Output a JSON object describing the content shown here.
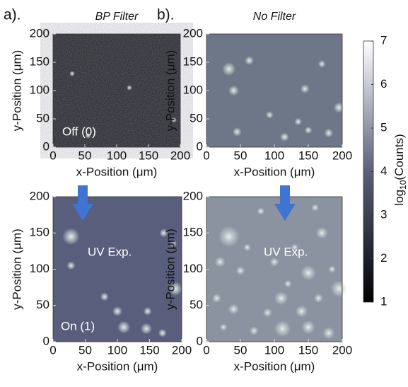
{
  "chart_data": [
    {
      "type": "image",
      "panel": "a).",
      "title": "BP Filter",
      "xlabel": "x-Position (μm)",
      "ylabel": "y-Position (μm)",
      "xlim": [
        0,
        200
      ],
      "ylim": [
        0,
        200
      ],
      "xticks": [
        0,
        50,
        100,
        150,
        200
      ],
      "yticks": [
        0,
        50,
        100,
        150,
        200
      ],
      "color": "#1c1c22",
      "annotations": [
        "Off (0)"
      ]
    },
    {
      "type": "image",
      "panel": "b).",
      "title": "No Filter",
      "xlabel": "x-Position (μm)",
      "ylabel": "y-Position (μm)",
      "xlim": [
        0,
        200
      ],
      "ylim": [
        0,
        200
      ],
      "xticks": [
        0,
        50,
        100,
        150,
        200
      ],
      "yticks": [
        0,
        50,
        100,
        150,
        200
      ],
      "color": "#6e7787",
      "annotations": []
    },
    {
      "type": "image",
      "xlabel": "x-Position (μm)",
      "ylabel": "y-Position (μm)",
      "xlim": [
        0,
        200
      ],
      "ylim": [
        0,
        200
      ],
      "xticks": [
        0,
        50,
        100,
        150,
        200
      ],
      "yticks": [
        0,
        50,
        100,
        150,
        200
      ],
      "color": "#585e7c",
      "annotations": [
        "UV Exp.",
        "On (1)"
      ]
    },
    {
      "type": "image",
      "xlabel": "x-Position (μm)",
      "ylabel": "y-Position (μm)",
      "xlim": [
        0,
        200
      ],
      "ylim": [
        0,
        200
      ],
      "xticks": [
        0,
        50,
        100,
        150,
        200
      ],
      "yticks": [
        0,
        50,
        100,
        150,
        200
      ],
      "color": "#8a939f",
      "annotations": [
        "UV Exp."
      ]
    },
    {
      "type": "colorbar",
      "label": {
        "base": "log",
        "sub": "10",
        "rest": "(Counts)"
      },
      "ylim": [
        1,
        7
      ],
      "yticks": [
        1,
        2,
        3,
        4,
        5,
        6,
        7
      ]
    }
  ]
}
